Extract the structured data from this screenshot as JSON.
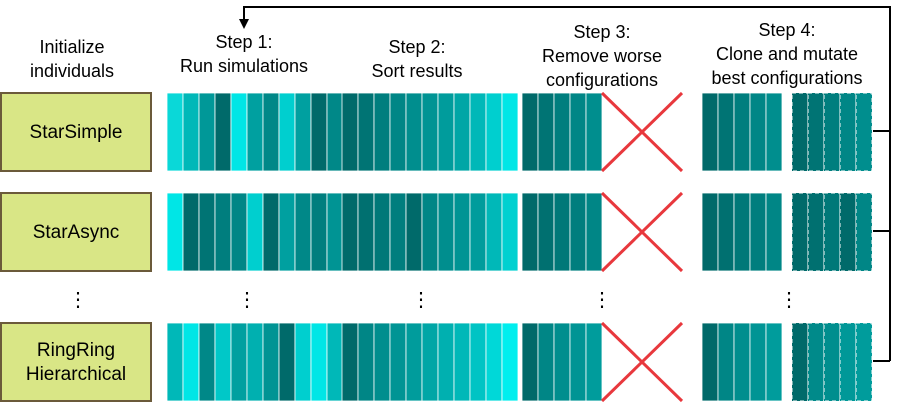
{
  "headers": {
    "init": [
      "Initialize",
      "individuals"
    ],
    "step1": [
      "Step 1:",
      "Run simulations"
    ],
    "step2": [
      "Step 2:",
      "Sort results"
    ],
    "step3": [
      "Step 3:",
      "Remove worse",
      "configurations"
    ],
    "step4": [
      "Step 4:",
      "Clone and mutate",
      "best configurations"
    ]
  },
  "colors": {
    "label_fill": "#d9e686",
    "label_border": "#6b5a3a",
    "cross": "#e8383d",
    "arrow": "#000000",
    "cell_border": "#ffffff"
  },
  "rows": [
    {
      "label": [
        "StarSimple"
      ],
      "run": [
        "#0ad8d8",
        "#00b8b8",
        "#009898",
        "#006a6a",
        "#00e6e6",
        "#00a0a0",
        "#008888",
        "#00cfcf",
        "#00a0a0",
        "#006a6a",
        "#008888"
      ],
      "sorted": [
        "#006a6a",
        "#007474",
        "#007e7e",
        "#008686",
        "#008e8e",
        "#009494",
        "#009c9c",
        "#00a6a6",
        "#00b8b8",
        "#00cfcf",
        "#00e6e6"
      ],
      "kept": [
        "#006a6a",
        "#007474",
        "#007e7e",
        "#008686",
        "#008e8e"
      ],
      "mutated": [
        "#006a6a",
        "#007474",
        "#007e7e",
        "#008686",
        "#008e8e"
      ]
    },
    {
      "label": [
        "StarAsync"
      ],
      "run": [
        "#00e6e6",
        "#006a6a",
        "#007474",
        "#007e7e",
        "#008686",
        "#00cfcf",
        "#006a6a",
        "#00a0a0",
        "#008888",
        "#007e7e",
        "#009494"
      ],
      "sorted": [
        "#006a6a",
        "#007070",
        "#007878",
        "#007e7e",
        "#006a6a",
        "#008686",
        "#008e8e",
        "#009494",
        "#009c9c",
        "#00b8b8",
        "#00d0d0"
      ],
      "kept": [
        "#006a6a",
        "#007070",
        "#007878",
        "#007e7e",
        "#008686"
      ],
      "mutated": [
        "#006a6a",
        "#007070",
        "#007878",
        "#006a6a",
        "#008686"
      ]
    },
    {
      "label": [
        "RingRing",
        "Hierarchical"
      ],
      "run": [
        "#00b8b8",
        "#00e6e6",
        "#008888",
        "#00c8c8",
        "#00a0a0",
        "#00b0b0",
        "#009494",
        "#006a6a",
        "#00cfcf",
        "#00e6e6",
        "#00b8b8"
      ],
      "sorted": [
        "#006a6a",
        "#008686",
        "#008e8e",
        "#009494",
        "#009c9c",
        "#00a6a6",
        "#00b0b0",
        "#00b8b8",
        "#00c4c4",
        "#00d8d8",
        "#00eeee"
      ],
      "kept": [
        "#006a6a",
        "#008686",
        "#008e8e",
        "#009494",
        "#009c9c"
      ],
      "mutated": [
        "#006a6a",
        "#008a8a",
        "#008e8e",
        "#009898",
        "#009c9c"
      ]
    }
  ],
  "ellipsis": "⋮"
}
